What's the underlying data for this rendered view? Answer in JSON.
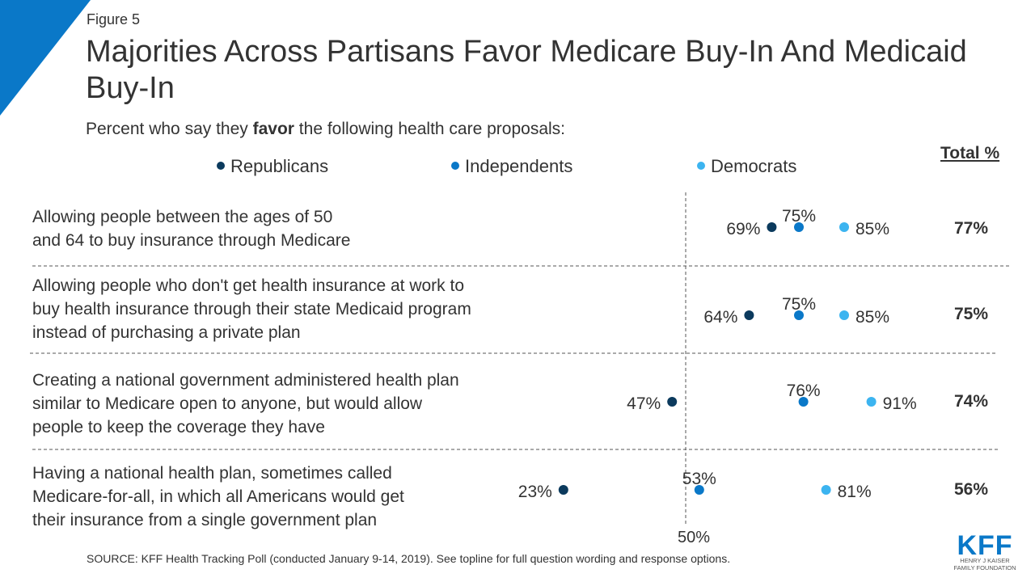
{
  "figure_label": "Figure 5",
  "title": "Majorities Across Partisans Favor Medicare Buy-In And Medicaid Buy-In",
  "subtitle_pre": "Percent who say they ",
  "subtitle_bold": "favor",
  "subtitle_post": " the following health care proposals:",
  "total_header": "Total %",
  "source": "SOURCE: KFF Health Tracking Poll (conducted January 9-14, 2019). See topline for full question wording and response options.",
  "logo": {
    "main": "KFF",
    "line1": "HENRY J KAISER",
    "line2": "FAMILY FOUNDATION"
  },
  "colors": {
    "republicans": "#0b3a5d",
    "independents": "#0a78c8",
    "democrats": "#3cb4f0",
    "accent": "#0a78c8"
  },
  "chart_data": {
    "type": "scatter",
    "reference_line": {
      "value": 50,
      "label": "50%"
    },
    "series": [
      {
        "name": "Republicans",
        "values": [
          69,
          64,
          47,
          23
        ]
      },
      {
        "name": "Independents",
        "values": [
          75,
          75,
          76,
          53
        ]
      },
      {
        "name": "Democrats",
        "values": [
          85,
          85,
          91,
          81
        ]
      }
    ],
    "rows": [
      {
        "lines": [
          "Allowing people between the ages of 50",
          "and 64 to buy insurance through Medicare"
        ],
        "total": "77%"
      },
      {
        "lines": [
          "Allowing people who don't get health insurance at work to",
          "buy health insurance through their state Medicaid program",
          "instead of purchasing a private plan"
        ],
        "total": "75%"
      },
      {
        "lines": [
          "Creating a national government administered health plan",
          "similar to Medicare open to anyone, but would allow",
          "people to keep the coverage they have"
        ],
        "total": "74%"
      },
      {
        "lines": [
          "Having a national health plan, sometimes called",
          "Medicare-for-all, in which all Americans would get",
          "their insurance from a single government plan"
        ],
        "total": "56%"
      }
    ]
  }
}
